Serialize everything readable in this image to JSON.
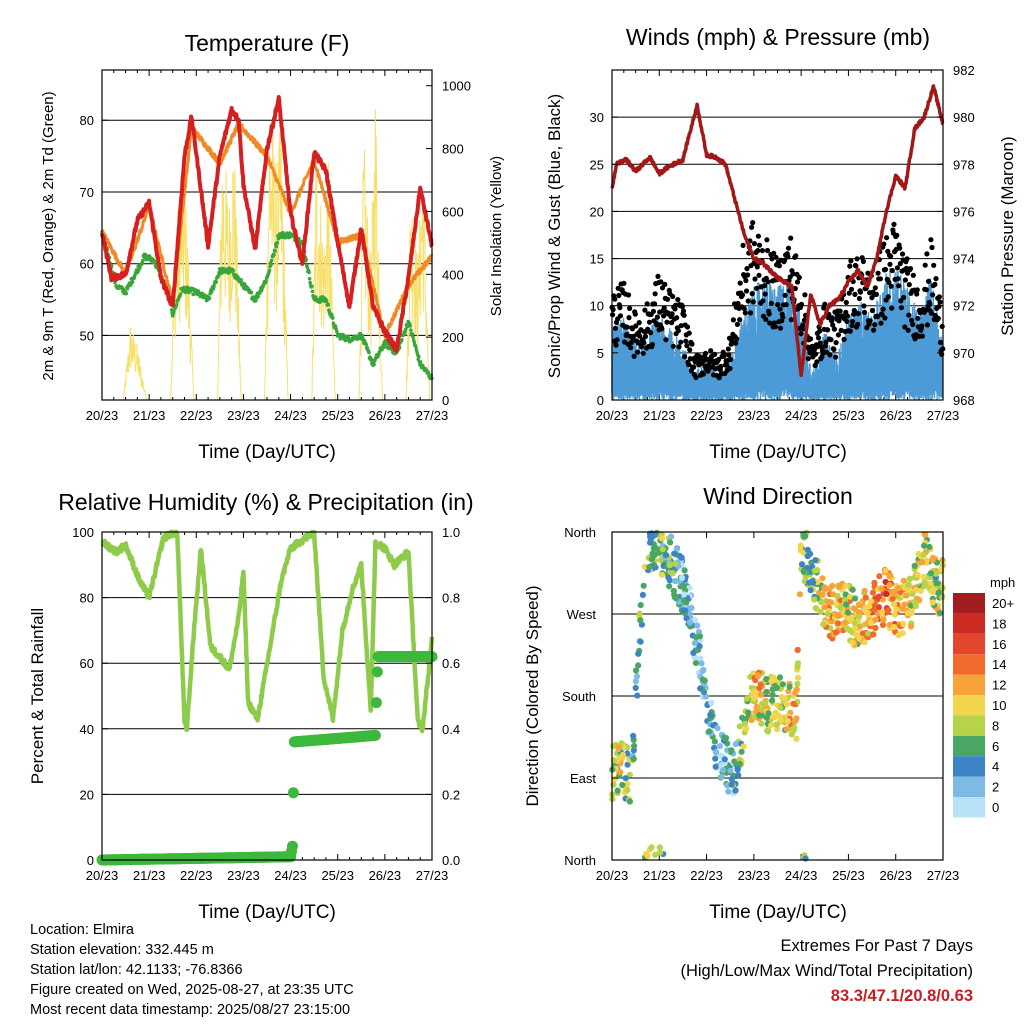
{
  "colors": {
    "temp_2m": "#d62020",
    "temp_9m": "#f08a24",
    "dewpoint": "#3aa63a",
    "solar": "#f7e06a",
    "wind": "#4c9bd6",
    "gust": "#000000",
    "pressure": "#a01818",
    "rh": "#8ecb4a",
    "precip": "#3db83d"
  },
  "footer": {
    "location": "Location: Elmira",
    "elevation": "Station elevation: 332.445 m",
    "latlon": "Station lat/lon: 42.1133; -76.8366",
    "created": "Figure created on Wed, 2025-08-27, at 23:35 UTC",
    "recent": "Most recent data timestamp: 2025/08/27 23:15:00"
  },
  "extremes": {
    "heading": "Extremes For Past 7 Days",
    "subheading": "(High/Low/Max Wind/Total Precipitation)",
    "values": "83.3/47.1/20.8/0.63"
  },
  "chart_data": [
    {
      "id": "temperature",
      "type": "line",
      "title": "Temperature (F)",
      "xlabel": "Time (Day/UTC)",
      "ylabel": "2m & 9m T (Red, Orange) & 2m Td (Green)",
      "ylabel_right": "Solar Insolation (Yellow)",
      "xticks": [
        "20/23",
        "21/23",
        "22/23",
        "23/23",
        "24/23",
        "25/23",
        "26/23",
        "27/23"
      ],
      "xlim": [
        0,
        7
      ],
      "ylim": [
        41,
        87
      ],
      "yticks": [
        50,
        60,
        70,
        80
      ],
      "ylim_right": [
        0,
        1050
      ],
      "yticks_right": [
        0,
        200,
        400,
        600,
        800,
        1000
      ],
      "grid_y": [
        50,
        60,
        70,
        80
      ],
      "series": [
        {
          "name": "2m T",
          "color": "#d62020",
          "x": [
            0,
            0.2,
            0.5,
            0.75,
            1.0,
            1.25,
            1.5,
            1.75,
            1.9,
            2.25,
            2.5,
            2.75,
            2.9,
            3.0,
            3.25,
            3.5,
            3.75,
            4.0,
            4.25,
            4.5,
            4.75,
            5.0,
            5.25,
            5.5,
            5.75,
            6.0,
            6.25,
            6.5,
            6.75,
            7.0
          ],
          "y": [
            64.5,
            58,
            58.5,
            66,
            68.5,
            58,
            54,
            75,
            80.5,
            62.5,
            75,
            81.5,
            80,
            71,
            62,
            76,
            83,
            67,
            60,
            75.5,
            73,
            63,
            54,
            65,
            54,
            50.5,
            48,
            58,
            70.5,
            62.5
          ]
        },
        {
          "name": "9m T",
          "color": "#f08a24",
          "x": [
            0,
            0.5,
            1.0,
            1.5,
            1.9,
            2.5,
            2.9,
            3.5,
            4.0,
            4.5,
            5.0,
            5.5,
            6.0,
            6.5,
            7.0
          ],
          "y": [
            64.5,
            58.5,
            68,
            54.5,
            79,
            74,
            79.5,
            75,
            67,
            74.5,
            63,
            64,
            50,
            57,
            61
          ]
        },
        {
          "name": "2m Td",
          "color": "#3aa63a",
          "x": [
            0,
            0.3,
            0.5,
            0.9,
            1.1,
            1.4,
            1.5,
            1.7,
            2.0,
            2.25,
            2.5,
            2.75,
            3.0,
            3.25,
            3.5,
            3.75,
            4.0,
            4.25,
            4.5,
            4.75,
            5.0,
            5.25,
            5.5,
            5.75,
            6.0,
            6.25,
            6.5,
            6.75,
            7.0
          ],
          "y": [
            64.5,
            57,
            56,
            61,
            60.5,
            56,
            53,
            56.5,
            56,
            55,
            59,
            59,
            57,
            55,
            58,
            64,
            64,
            63,
            55,
            55,
            50,
            49.5,
            50,
            46,
            49,
            47.5,
            52,
            46,
            44
          ]
        },
        {
          "name": "Solar",
          "axis": "right",
          "color": "#f7e06a",
          "x": [
            0,
            0.45,
            0.6,
            0.75,
            0.95,
            1.45,
            1.55,
            1.7,
            1.8,
            1.95,
            2.45,
            2.55,
            2.7,
            2.8,
            2.95,
            3.45,
            3.55,
            3.7,
            3.8,
            3.95,
            4.45,
            4.55,
            4.7,
            4.8,
            4.95,
            5.45,
            5.55,
            5.7,
            5.8,
            5.95,
            6.45,
            6.55,
            6.7,
            6.8,
            6.95,
            7.0
          ],
          "y": [
            0,
            0,
            250,
            180,
            0,
            0,
            540,
            760,
            620,
            0,
            0,
            870,
            640,
            920,
            0,
            0,
            980,
            760,
            900,
            0,
            0,
            870,
            520,
            760,
            0,
            0,
            860,
            420,
            1030,
            0,
            0,
            720,
            440,
            850,
            0,
            0
          ]
        }
      ]
    },
    {
      "id": "winds",
      "type": "line",
      "title": "Winds (mph) & Pressure (mb)",
      "xlabel": "Time (Day/UTC)",
      "ylabel": "Sonic/Prop Wind & Gust (Blue, Black)",
      "ylabel_right": "Station Pressure (Maroon)",
      "xticks": [
        "20/23",
        "21/23",
        "22/23",
        "23/23",
        "24/23",
        "25/23",
        "26/23",
        "27/23"
      ],
      "xlim": [
        0,
        7
      ],
      "ylim": [
        0,
        35
      ],
      "yticks": [
        0,
        5,
        10,
        15,
        20,
        25,
        30
      ],
      "ylim_right": [
        968,
        982
      ],
      "yticks_right": [
        968,
        970,
        972,
        974,
        976,
        978,
        980,
        982
      ],
      "grid_y": [
        5,
        10,
        15,
        20,
        25,
        30
      ],
      "series": [
        {
          "name": "Wind",
          "color": "#4c9bd6",
          "x": [
            0,
            0.25,
            0.5,
            0.75,
            1.0,
            1.25,
            1.5,
            1.75,
            2.0,
            2.25,
            2.5,
            2.75,
            3.0,
            3.25,
            3.5,
            3.75,
            4.0,
            4.25,
            4.5,
            4.75,
            5.0,
            5.25,
            5.5,
            5.75,
            6.0,
            6.25,
            6.5,
            6.75,
            7.0
          ],
          "y": [
            5,
            6,
            4,
            5,
            6,
            5,
            4,
            2,
            3,
            2,
            3,
            6,
            8,
            9,
            8,
            9,
            6,
            2,
            5,
            3,
            6,
            7,
            6,
            9,
            10,
            8,
            6,
            9,
            4
          ]
        },
        {
          "name": "Gust",
          "color": "#000000",
          "x": [
            0,
            0.25,
            0.5,
            0.75,
            1.0,
            1.25,
            1.5,
            1.75,
            2.0,
            2.25,
            2.5,
            2.75,
            3.0,
            3.25,
            3.5,
            3.75,
            4.0,
            4.25,
            4.5,
            4.75,
            5.0,
            5.25,
            5.5,
            5.75,
            6.0,
            6.25,
            6.5,
            6.75,
            7.0
          ],
          "y": [
            10,
            11,
            8,
            9,
            12,
            10,
            9,
            4,
            5,
            4,
            6,
            14,
            17,
            15,
            13,
            16,
            12,
            5,
            9,
            8,
            13,
            14,
            12,
            15,
            17,
            13,
            11,
            15,
            8
          ]
        },
        {
          "name": "Pressure",
          "axis": "right",
          "color": "#a01818",
          "x": [
            0,
            0.1,
            0.3,
            0.5,
            0.8,
            1.0,
            1.2,
            1.5,
            1.6,
            1.8,
            2.0,
            2.2,
            2.4,
            2.6,
            2.8,
            3.0,
            3.2,
            3.5,
            3.8,
            4.0,
            4.2,
            4.4,
            4.6,
            4.8,
            5.0,
            5.2,
            5.4,
            5.6,
            5.8,
            6.0,
            6.2,
            6.4,
            6.6,
            6.8,
            7.0
          ],
          "y": [
            977,
            978,
            978.2,
            977.7,
            978.3,
            977.6,
            977.9,
            978.2,
            979,
            980.5,
            978.4,
            978.3,
            978,
            976.5,
            975,
            974,
            973.8,
            973.2,
            972.8,
            969,
            972.5,
            971.2,
            972,
            972.3,
            973,
            973.5,
            972.8,
            974,
            976,
            977.5,
            977,
            979.5,
            980,
            981.3,
            979.7
          ]
        }
      ]
    },
    {
      "id": "humidity",
      "type": "line",
      "title": "Relative Humidity (%) & Precipitation (in)",
      "xlabel": "Time (Day/UTC)",
      "ylabel": "Percent & Total Rainfall",
      "xticks": [
        "20/23",
        "21/23",
        "22/23",
        "23/23",
        "24/23",
        "25/23",
        "26/23",
        "27/23"
      ],
      "xlim": [
        0,
        7
      ],
      "ylim": [
        0,
        100
      ],
      "yticks": [
        0,
        20,
        40,
        60,
        80,
        100
      ],
      "ylim_right": [
        0,
        1
      ],
      "yticks_right": [
        "0.0",
        "0.2",
        "0.4",
        "0.6",
        "0.8",
        "1.0"
      ],
      "grid_y": [
        20,
        40,
        60,
        80
      ],
      "series": [
        {
          "name": "RH",
          "color": "#8ecb4a",
          "x": [
            0,
            0.3,
            0.5,
            0.8,
            1.0,
            1.3,
            1.5,
            1.6,
            1.75,
            1.8,
            1.95,
            2.1,
            2.3,
            2.5,
            2.7,
            2.9,
            3.0,
            3.1,
            3.3,
            3.6,
            3.8,
            4.0,
            4.3,
            4.5,
            4.7,
            4.9,
            5.1,
            5.3,
            5.5,
            5.7,
            5.8,
            6.0,
            6.2,
            6.5,
            6.7,
            6.8,
            7.0
          ],
          "y": [
            97,
            94,
            96,
            85,
            80,
            98,
            100,
            99,
            42,
            40,
            70,
            95,
            65,
            62,
            58,
            74,
            88,
            48,
            43,
            68,
            85,
            95,
            98,
            100,
            56,
            43,
            70,
            82,
            90,
            45,
            97,
            95,
            90,
            94,
            42,
            40,
            67
          ]
        },
        {
          "name": "Precipitation",
          "axis": "right",
          "color": "#3db83d",
          "x": [
            0,
            4.0,
            4.05,
            4.07,
            5.8,
            5.82,
            5.85,
            7.0
          ],
          "y": [
            0,
            0.01,
            0.05,
            0.36,
            0.38,
            0.48,
            0.62,
            0.62
          ]
        }
      ]
    },
    {
      "id": "wind-direction",
      "type": "scatter",
      "title": "Wind Direction",
      "xlabel": "Time (Day/UTC)",
      "ylabel": "Direction (Colored By Speed)",
      "xticks": [
        "20/23",
        "21/23",
        "22/23",
        "23/23",
        "24/23",
        "25/23",
        "26/23",
        "27/23"
      ],
      "xlim": [
        0,
        7
      ],
      "ylim": [
        0,
        360
      ],
      "yticks": [
        "North",
        "East",
        "South",
        "West",
        "North"
      ],
      "ytick_values": [
        0,
        90,
        180,
        270,
        360
      ],
      "colorbar": {
        "title": "mph",
        "labels": [
          "20+",
          "18",
          "16",
          "14",
          "12",
          "10",
          "8",
          "6",
          "4",
          "2",
          "0"
        ],
        "colors": [
          "#a21d1d",
          "#cc2a22",
          "#e2462d",
          "#f06a2b",
          "#f7a23a",
          "#f3d44d",
          "#b7d34a",
          "#4aa763",
          "#3d84c6",
          "#7dbbe6",
          "#b8e2f8"
        ]
      },
      "series": [
        {
          "name": "direction",
          "x": [
            0,
            0.2,
            0.4,
            0.7,
            0.9,
            1.1,
            1.3,
            1.5,
            1.8,
            2.0,
            2.3,
            2.6,
            2.9,
            3.0,
            3.3,
            3.6,
            3.9,
            4.0,
            4.2,
            4.5,
            4.7,
            4.9,
            5.2,
            5.5,
            5.8,
            6.0,
            6.3,
            6.6,
            6.9
          ],
          "y": [
            95,
            100,
            90,
            345,
            350,
            340,
            320,
            300,
            240,
            160,
            110,
            100,
            175,
            185,
            170,
            175,
            160,
            345,
            320,
            280,
            270,
            280,
            260,
            275,
            290,
            275,
            280,
            330,
            300
          ],
          "speed": [
            7,
            8,
            6,
            6,
            7,
            6,
            4,
            3,
            3,
            3,
            3,
            4,
            10,
            11,
            9,
            8,
            12,
            8,
            6,
            11,
            12,
            10,
            9,
            13,
            14,
            12,
            10,
            9,
            8
          ]
        }
      ]
    }
  ]
}
